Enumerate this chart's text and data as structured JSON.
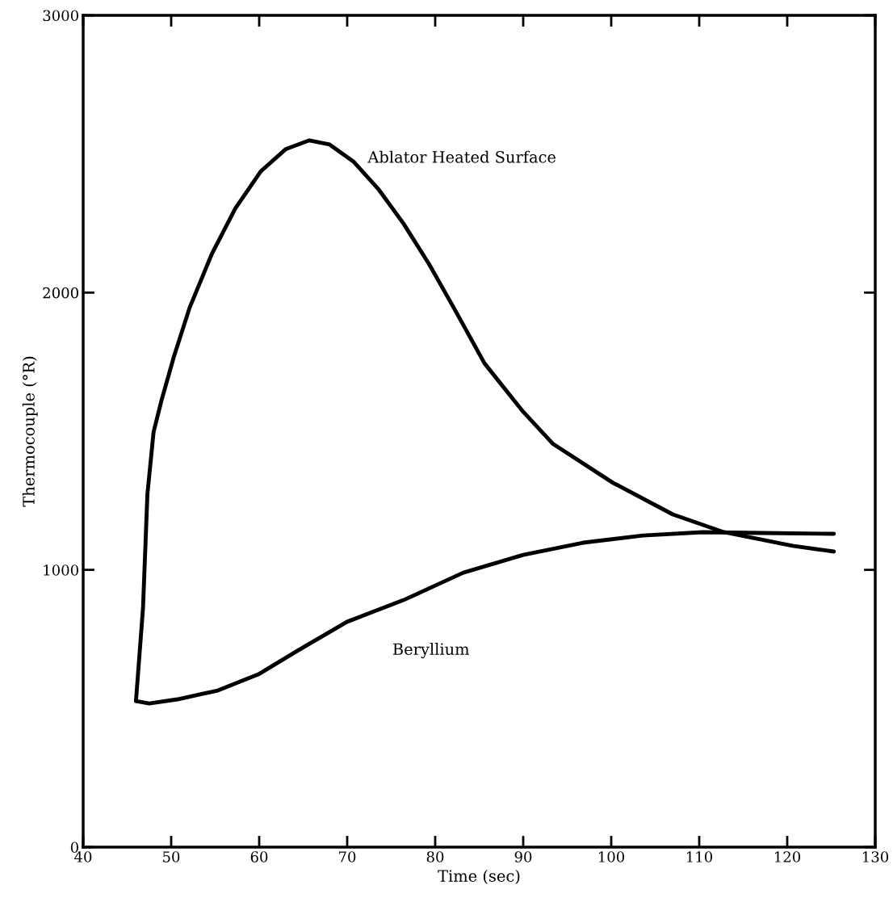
{
  "chart_data": {
    "type": "line",
    "xlabel": "Time (sec)",
    "ylabel": "Thermocouple (°R)",
    "xlim": [
      40,
      130
    ],
    "ylim": [
      0,
      3000
    ],
    "xticks": [
      40,
      50,
      60,
      70,
      80,
      90,
      100,
      110,
      120,
      130
    ],
    "yticks": [
      0,
      1000,
      2000,
      3000
    ],
    "grid": false,
    "legend": false,
    "marker": "none",
    "line_style": "solid",
    "series": [
      {
        "name": "Ablator Heated Surface",
        "color": "#000000",
        "x": [
          46.0,
          46.8,
          47.3,
          48.0,
          48.9,
          50.3,
          52.1,
          54.6,
          57.3,
          60.2,
          63.0,
          65.7,
          68.0,
          70.7,
          73.6,
          76.4,
          79.3,
          82.1,
          85.6,
          90.0,
          93.4,
          100.2,
          107.0,
          112.8,
          120.6,
          125.3
        ],
        "values": [
          527,
          862,
          1273,
          1497,
          1611,
          1768,
          1946,
          2138,
          2304,
          2438,
          2517,
          2549,
          2534,
          2473,
          2371,
          2249,
          2103,
          1946,
          1745,
          1570,
          1454,
          1314,
          1200,
          1136,
          1087,
          1066
        ]
      },
      {
        "name": "Beryllium",
        "color": "#000000",
        "x": [
          46.0,
          47.5,
          50.7,
          55.3,
          59.9,
          64.5,
          70.0,
          76.4,
          83.2,
          90.0,
          96.8,
          103.6,
          110.4,
          117.2,
          125.3
        ],
        "values": [
          527,
          518,
          533,
          565,
          623,
          711,
          813,
          891,
          990,
          1054,
          1098,
          1124,
          1136,
          1133,
          1130
        ]
      }
    ]
  }
}
